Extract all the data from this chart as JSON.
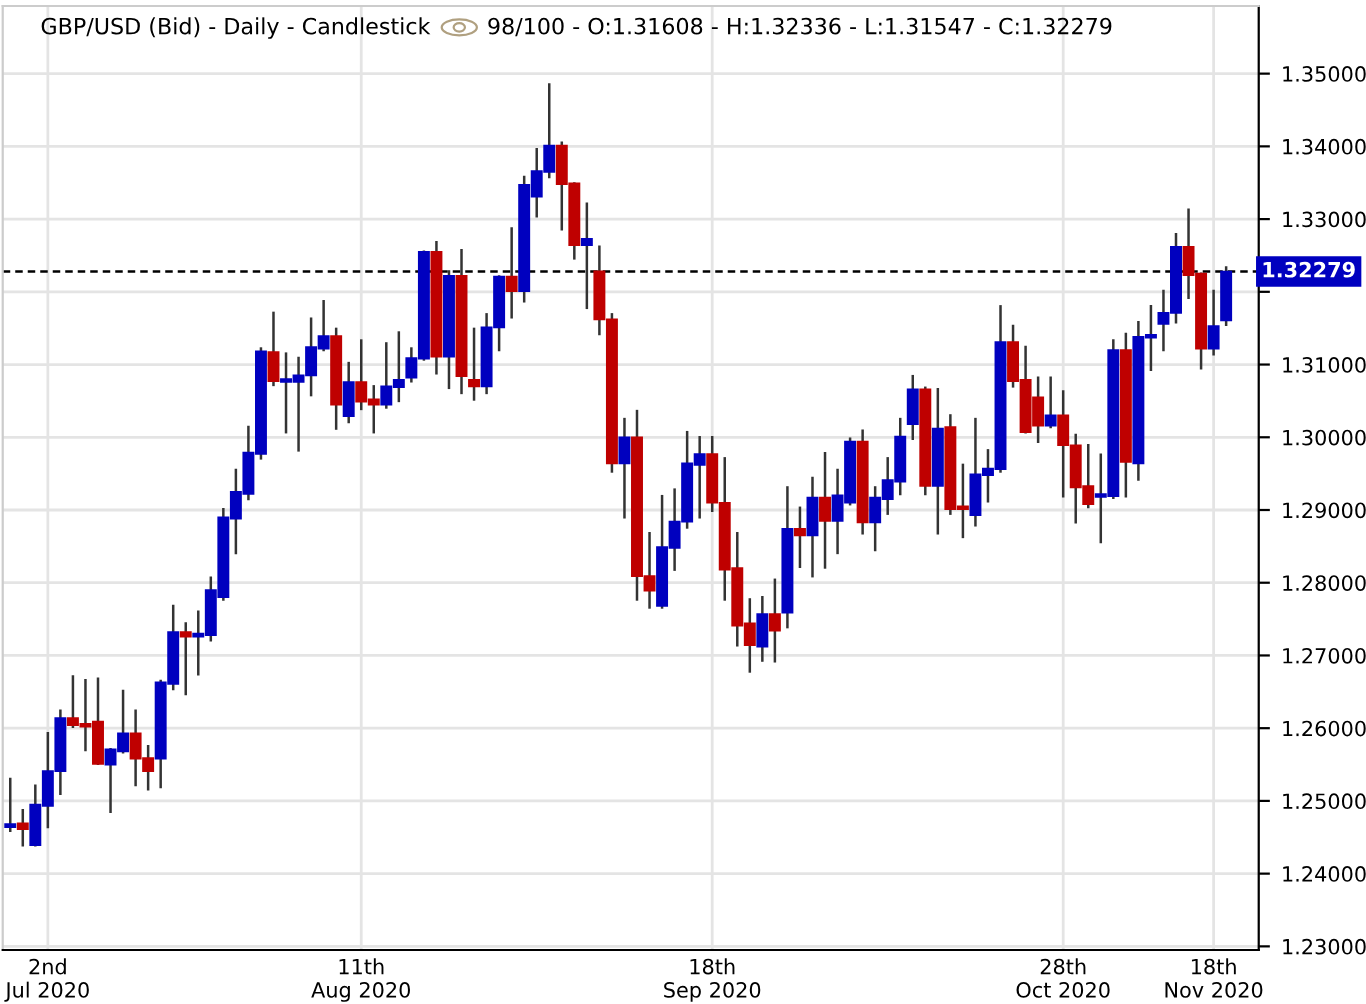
{
  "chart_data": {
    "type": "candlestick",
    "title": "GBP/USD (Bid) - Daily - Candlestick",
    "subtitle": "98/100 - O:1.31608 - H:1.32336 - L:1.31547 - C:1.32279",
    "categories": [
      null,
      null,
      null,
      "2nd\nJul 2020",
      null,
      null,
      null,
      null,
      null,
      null,
      null,
      null,
      null,
      null,
      null,
      null,
      null,
      null,
      null,
      null,
      null,
      null,
      null,
      null,
      null,
      null,
      null,
      null,
      "11th\nAug 2020",
      null,
      null,
      null,
      null,
      null,
      null,
      null,
      null,
      null,
      null,
      null,
      null,
      null,
      null,
      null,
      null,
      null,
      null,
      null,
      null,
      null,
      null,
      null,
      null,
      null,
      null,
      null,
      "18th\nSep 2020",
      null,
      null,
      null,
      null,
      null,
      null,
      null,
      null,
      null,
      null,
      null,
      null,
      null,
      null,
      null,
      null,
      null,
      null,
      null,
      null,
      null,
      null,
      null,
      null,
      null,
      null,
      null,
      "28th\nOct 2020",
      null,
      null,
      null,
      null,
      null,
      null,
      null,
      null,
      null,
      null,
      null,
      "18th\nNov 2020",
      null
    ],
    "ohlc": [
      [
        1.2464,
        1.253,
        1.2459,
        1.2468
      ],
      [
        1.2469,
        1.2487,
        1.2439,
        1.2461
      ],
      [
        1.2439,
        1.2521,
        1.2439,
        1.2495
      ],
      [
        1.2493,
        1.2593,
        1.2464,
        1.2541
      ],
      [
        1.2541,
        1.2624,
        1.251,
        1.2614
      ],
      [
        1.2614,
        1.2671,
        1.2602,
        1.2604
      ],
      [
        1.2606,
        1.2666,
        1.257,
        1.2602
      ],
      [
        1.2609,
        1.2668,
        1.2551,
        1.2551
      ],
      [
        1.255,
        1.2571,
        1.2485,
        1.2571
      ],
      [
        1.2568,
        1.2651,
        1.2567,
        1.2593
      ],
      [
        1.2593,
        1.2624,
        1.2522,
        1.2558
      ],
      [
        1.2559,
        1.2575,
        1.2516,
        1.2541
      ],
      [
        1.2558,
        1.2665,
        1.2519,
        1.2663
      ],
      [
        1.2661,
        1.2768,
        1.2654,
        1.2732
      ],
      [
        1.2732,
        1.2744,
        1.2647,
        1.2726
      ],
      [
        1.2726,
        1.276,
        1.2674,
        1.273
      ],
      [
        1.2728,
        1.2807,
        1.2721,
        1.279
      ],
      [
        1.278,
        1.2901,
        1.2777,
        1.289
      ],
      [
        1.2888,
        1.2955,
        1.2841,
        1.2925
      ],
      [
        1.2922,
        1.3014,
        1.2915,
        1.2979
      ],
      [
        1.2977,
        1.3122,
        1.2971,
        1.3118
      ],
      [
        1.3117,
        1.3171,
        1.3072,
        1.3077
      ],
      [
        1.3076,
        1.3115,
        1.3007,
        1.308
      ],
      [
        1.3076,
        1.3109,
        1.2982,
        1.3085
      ],
      [
        1.3085,
        1.3163,
        1.3058,
        1.3124
      ],
      [
        1.3122,
        1.3187,
        1.312,
        1.3139
      ],
      [
        1.3139,
        1.3149,
        1.3012,
        1.3045
      ],
      [
        1.3029,
        1.3102,
        1.3021,
        1.3076
      ],
      [
        1.3076,
        1.3133,
        1.3039,
        1.3049
      ],
      [
        1.3052,
        1.307,
        1.3007,
        1.3045
      ],
      [
        1.3045,
        1.3129,
        1.3041,
        1.307
      ],
      [
        1.3069,
        1.3144,
        1.305,
        1.3079
      ],
      [
        1.3082,
        1.3122,
        1.3077,
        1.3109
      ],
      [
        1.3108,
        1.3255,
        1.3107,
        1.3255
      ],
      [
        1.3255,
        1.3268,
        1.3088,
        1.3111
      ],
      [
        1.3111,
        1.3228,
        1.3068,
        1.3222
      ],
      [
        1.3222,
        1.3257,
        1.3061,
        1.3084
      ],
      [
        1.3079,
        1.3149,
        1.3052,
        1.307
      ],
      [
        1.307,
        1.3169,
        1.3061,
        1.3151
      ],
      [
        1.3151,
        1.3221,
        1.312,
        1.3221
      ],
      [
        1.3221,
        1.3287,
        1.3165,
        1.3201
      ],
      [
        1.3201,
        1.3358,
        1.3187,
        1.3347
      ],
      [
        1.3331,
        1.3396,
        1.3304,
        1.3366
      ],
      [
        1.3365,
        1.3485,
        1.3358,
        1.3401
      ],
      [
        1.3401,
        1.3405,
        1.3286,
        1.3348
      ],
      [
        1.3349,
        1.3349,
        1.3246,
        1.3264
      ],
      [
        1.3264,
        1.3321,
        1.3178,
        1.3273
      ],
      [
        1.3228,
        1.3262,
        1.3142,
        1.3162
      ],
      [
        1.3162,
        1.3169,
        1.2953,
        1.2964
      ],
      [
        1.2964,
        1.3025,
        1.289,
        1.3
      ],
      [
        1.3,
        1.3036,
        1.2777,
        1.2809
      ],
      [
        1.2809,
        1.2868,
        1.2766,
        1.2789
      ],
      [
        1.2768,
        1.2919,
        1.2766,
        1.2849
      ],
      [
        1.2848,
        1.2928,
        1.2818,
        1.2884
      ],
      [
        1.2884,
        1.3007,
        1.2876,
        1.2964
      ],
      [
        1.2962,
        1.3,
        1.289,
        1.2977
      ],
      [
        1.2977,
        1.3,
        1.2899,
        1.291
      ],
      [
        1.291,
        1.2971,
        1.2777,
        1.2818
      ],
      [
        1.282,
        1.2868,
        1.2714,
        1.2741
      ],
      [
        1.2744,
        1.2777,
        1.2678,
        1.2714
      ],
      [
        1.2712,
        1.278,
        1.2693,
        1.2757
      ],
      [
        1.2757,
        1.2804,
        1.2692,
        1.2734
      ],
      [
        1.2759,
        1.2931,
        1.2739,
        1.2874
      ],
      [
        1.2874,
        1.2903,
        1.2822,
        1.2865
      ],
      [
        1.2865,
        1.2944,
        1.2809,
        1.2917
      ],
      [
        1.2917,
        1.2978,
        1.2821,
        1.2885
      ],
      [
        1.2885,
        1.2955,
        1.2841,
        1.292
      ],
      [
        1.291,
        1.2998,
        1.2908,
        1.2994
      ],
      [
        1.2994,
        1.3009,
        1.2868,
        1.2883
      ],
      [
        1.2883,
        1.2931,
        1.2845,
        1.2917
      ],
      [
        1.2915,
        1.2971,
        1.2895,
        1.2941
      ],
      [
        1.2939,
        1.3025,
        1.2922,
        1.3001
      ],
      [
        1.3018,
        1.3084,
        1.2998,
        1.3066
      ],
      [
        1.3066,
        1.3068,
        1.2922,
        1.2933
      ],
      [
        1.2933,
        1.3066,
        1.2868,
        1.3012
      ],
      [
        1.3014,
        1.303,
        1.2895,
        1.2901
      ],
      [
        1.2905,
        1.2962,
        1.2863,
        1.2901
      ],
      [
        1.2893,
        1.3025,
        1.2879,
        1.2949
      ],
      [
        1.2948,
        1.2982,
        1.2912,
        1.2957
      ],
      [
        1.2956,
        1.318,
        1.2953,
        1.3131
      ],
      [
        1.3131,
        1.3153,
        1.307,
        1.3077
      ],
      [
        1.3079,
        1.3124,
        1.3007,
        1.3007
      ],
      [
        1.3055,
        1.3082,
        1.2994,
        1.3016
      ],
      [
        1.3016,
        1.3082,
        1.3014,
        1.303
      ],
      [
        1.303,
        1.3063,
        1.2919,
        1.2989
      ],
      [
        1.2989,
        1.3003,
        1.2883,
        1.2931
      ],
      [
        1.2933,
        1.2989,
        1.2904,
        1.2908
      ],
      [
        1.2918,
        1.2976,
        1.2856,
        1.2922
      ],
      [
        1.2919,
        1.3133,
        1.2917,
        1.312
      ],
      [
        1.312,
        1.3142,
        1.2919,
        1.2966
      ],
      [
        1.2964,
        1.3158,
        1.2942,
        1.3138
      ],
      [
        1.3137,
        1.318,
        1.3093,
        1.3141
      ],
      [
        1.3156,
        1.3201,
        1.312,
        1.3171
      ],
      [
        1.3171,
        1.3279,
        1.3158,
        1.3262
      ],
      [
        1.3262,
        1.3313,
        1.3192,
        1.3223
      ],
      [
        1.3225,
        1.3225,
        1.3095,
        1.3122
      ],
      [
        1.3122,
        1.3201,
        1.3114,
        1.3153
      ],
      [
        1.31608,
        1.32336,
        1.31547,
        1.32279
      ]
    ],
    "colors": [
      "#0000bf",
      "#bf0000",
      "#0000bf",
      "#0000bf",
      "#0000bf",
      "#bf0000",
      "#bf0000",
      "#bf0000",
      "#0000bf",
      "#0000bf",
      "#bf0000",
      "#bf0000",
      "#0000bf",
      "#0000bf",
      "#bf0000",
      "#0000bf",
      "#0000bf",
      "#0000bf",
      "#0000bf",
      "#0000bf",
      "#0000bf",
      "#bf0000",
      "#0000bf",
      "#0000bf",
      "#0000bf",
      "#0000bf",
      "#bf0000",
      "#0000bf",
      "#bf0000",
      "#bf0000",
      "#0000bf",
      "#0000bf",
      "#0000bf",
      "#0000bf",
      "#bf0000",
      "#0000bf",
      "#bf0000",
      "#bf0000",
      "#0000bf",
      "#0000bf",
      "#bf0000",
      "#0000bf",
      "#0000bf",
      "#0000bf",
      "#bf0000",
      "#bf0000",
      "#0000bf",
      "#bf0000",
      "#bf0000",
      "#0000bf",
      "#bf0000",
      "#bf0000",
      "#0000bf",
      "#0000bf",
      "#0000bf",
      "#0000bf",
      "#bf0000",
      "#bf0000",
      "#bf0000",
      "#bf0000",
      "#0000bf",
      "#bf0000",
      "#0000bf",
      "#bf0000",
      "#0000bf",
      "#bf0000",
      "#0000bf",
      "#0000bf",
      "#bf0000",
      "#0000bf",
      "#0000bf",
      "#0000bf",
      "#0000bf",
      "#bf0000",
      "#0000bf",
      "#bf0000",
      "#bf0000",
      "#0000bf",
      "#0000bf",
      "#0000bf",
      "#bf0000",
      "#bf0000",
      "#bf0000",
      "#0000bf",
      "#bf0000",
      "#bf0000",
      "#bf0000",
      "#0000bf",
      "#0000bf",
      "#bf0000",
      "#0000bf",
      "#0000bf",
      "#0000bf",
      "#0000bf",
      "#bf0000",
      "#bf0000",
      "#0000bf",
      "#0000bf"
    ],
    "ylim": [
      1.2295,
      1.3593
    ],
    "yticks": [
      {
        "value": 1.23,
        "label": "1.23000"
      },
      {
        "value": 1.24,
        "label": "1.24000"
      },
      {
        "value": 1.25,
        "label": "1.25000"
      },
      {
        "value": 1.26,
        "label": "1.26000"
      },
      {
        "value": 1.27,
        "label": "1.27000"
      },
      {
        "value": 1.28,
        "label": "1.28000"
      },
      {
        "value": 1.29,
        "label": "1.29000"
      },
      {
        "value": 1.3,
        "label": "1.30000"
      },
      {
        "value": 1.31,
        "label": "1.31000"
      },
      {
        "value": 1.32,
        "label": null
      },
      {
        "value": 1.33,
        "label": "1.33000"
      },
      {
        "value": 1.34,
        "label": "1.34000"
      },
      {
        "value": 1.35,
        "label": "1.35000"
      }
    ],
    "ref_lines": [
      {
        "axis": "y",
        "value": 1.32279,
        "label": "1.32279",
        "color": "#000000",
        "line_style": "dashed"
      }
    ],
    "grid": true
  }
}
